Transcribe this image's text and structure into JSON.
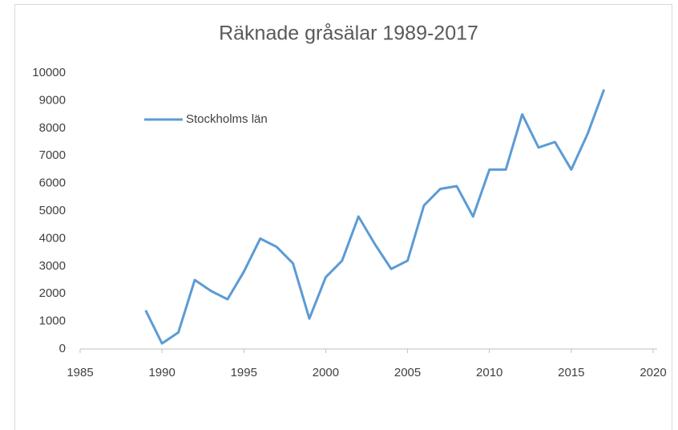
{
  "chart_data": {
    "type": "line",
    "title": "Räknade gråsälar 1989-2017",
    "x": [
      1989,
      1990,
      1991,
      1992,
      1993,
      1994,
      1995,
      1996,
      1997,
      1998,
      1999,
      2000,
      2001,
      2002,
      2003,
      2004,
      2005,
      2006,
      2007,
      2008,
      2009,
      2010,
      2011,
      2012,
      2013,
      2014,
      2015,
      2016,
      2017
    ],
    "series": [
      {
        "name": "Stockholms län",
        "color": "#5b9bd5",
        "values": [
          1400,
          200,
          600,
          2500,
          2100,
          1800,
          2800,
          4000,
          3700,
          3100,
          1100,
          2600,
          3200,
          4800,
          3800,
          2900,
          3200,
          5200,
          5800,
          5900,
          4800,
          6500,
          6500,
          8500,
          7300,
          7500,
          6500,
          7800,
          9400
        ]
      }
    ],
    "xlim": [
      1985,
      2020
    ],
    "xticks": [
      1985,
      1990,
      1995,
      2000,
      2005,
      2010,
      2015,
      2020
    ],
    "ylim": [
      0,
      10000
    ],
    "yticks": [
      0,
      1000,
      2000,
      3000,
      4000,
      5000,
      6000,
      7000,
      8000,
      9000,
      10000
    ],
    "grid": false,
    "legend": "upper left"
  }
}
